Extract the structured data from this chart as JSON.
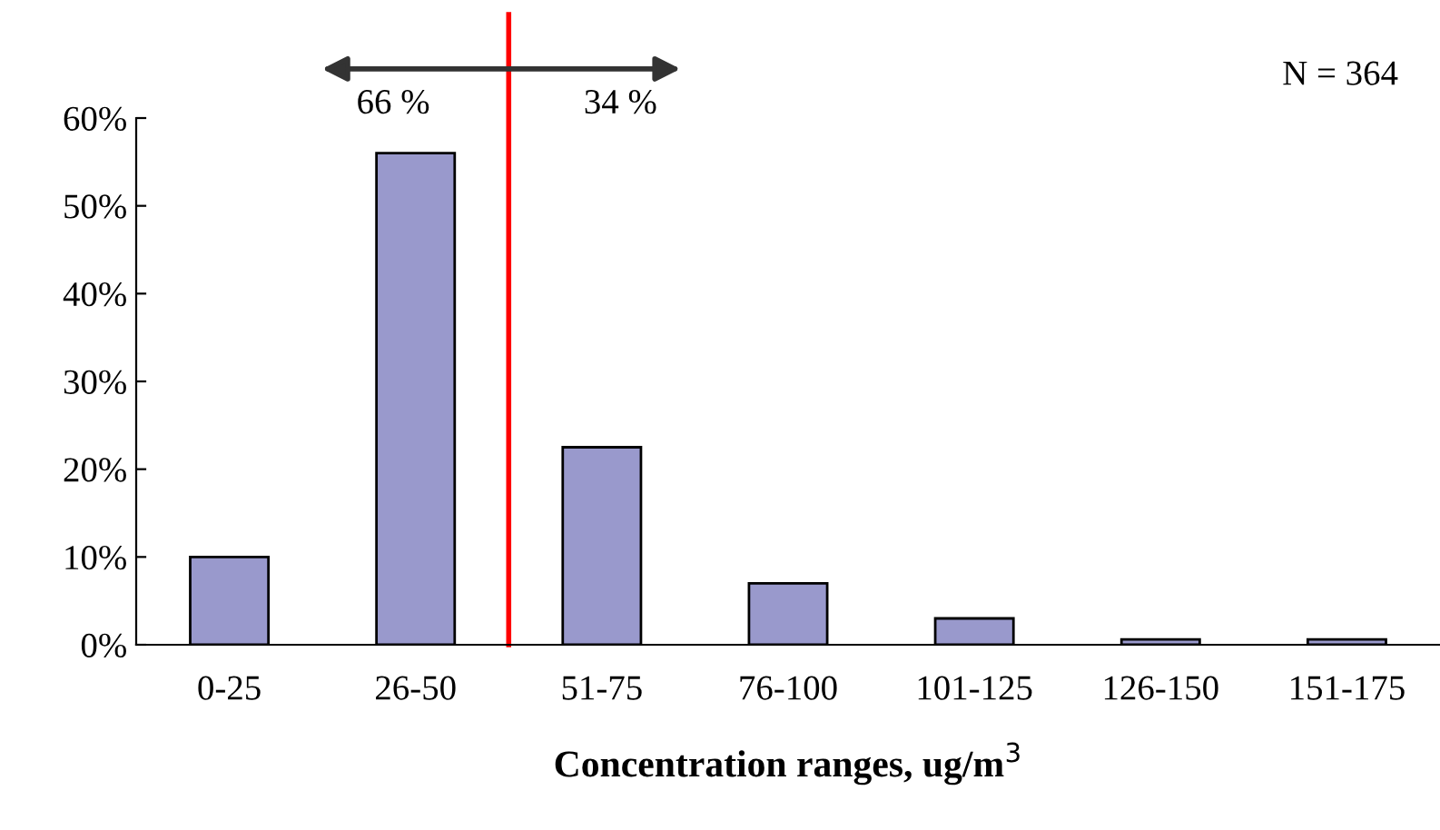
{
  "chart_data": {
    "type": "bar",
    "xlabel": "Concentration ranges, ug/m$^{3}$",
    "categories": [
      "0-25",
      "26-50",
      "51-75",
      "76-100",
      "101-125",
      "126-150",
      "151-175"
    ],
    "values": [
      10,
      56,
      22.5,
      7,
      3,
      0.6,
      0.6
    ],
    "color": "#9999cc",
    "ylim": [
      0,
      60
    ],
    "yticks": [
      {
        "value": 0,
        "label": "0%"
      },
      {
        "value": 10,
        "label": "10%"
      },
      {
        "value": 20,
        "label": "20%"
      },
      {
        "value": 30,
        "label": "30%"
      },
      {
        "value": 40,
        "label": "40%"
      },
      {
        "value": 50,
        "label": "50%"
      },
      {
        "value": 60,
        "label": "60%"
      }
    ],
    "ref_lines": [
      {
        "axis": "x",
        "value": "26-50",
        "color": "#ff0000"
      }
    ],
    "annotations": [
      "66 %",
      "34 %",
      "N = 364"
    ],
    "grid": false
  }
}
